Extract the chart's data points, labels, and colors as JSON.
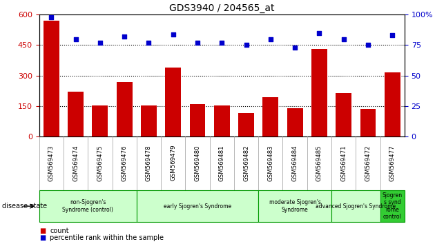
{
  "title": "GDS3940 / 204565_at",
  "samples": [
    "GSM569473",
    "GSM569474",
    "GSM569475",
    "GSM569476",
    "GSM569478",
    "GSM569479",
    "GSM569480",
    "GSM569481",
    "GSM569482",
    "GSM569483",
    "GSM569484",
    "GSM569485",
    "GSM569471",
    "GSM569472",
    "GSM569477"
  ],
  "counts": [
    570,
    220,
    155,
    270,
    155,
    340,
    160,
    155,
    115,
    195,
    140,
    430,
    215,
    135,
    315
  ],
  "percentiles": [
    98,
    80,
    77,
    82,
    77,
    84,
    77,
    77,
    75,
    80,
    73,
    85,
    80,
    75,
    83
  ],
  "bar_color": "#cc0000",
  "dot_color": "#0000cc",
  "ylim_left": [
    0,
    600
  ],
  "ylim_right": [
    0,
    100
  ],
  "yticks_left": [
    0,
    150,
    300,
    450,
    600
  ],
  "yticks_right": [
    0,
    25,
    50,
    75,
    100
  ],
  "grid_values": [
    150,
    300,
    450
  ],
  "groups": [
    {
      "label": "non-Sjogren's\nSyndrome (control)",
      "start": 0,
      "end": 3,
      "color": "#ccffcc"
    },
    {
      "label": "early Sjogren's Syndrome",
      "start": 4,
      "end": 8,
      "color": "#ccffcc"
    },
    {
      "label": "moderate Sjogren's\nSyndrome",
      "start": 9,
      "end": 11,
      "color": "#ccffcc"
    },
    {
      "label": "advanced Sjogren's Syndrome",
      "start": 12,
      "end": 13,
      "color": "#ccffcc"
    },
    {
      "label": "Sjogren\ns synd\nrome\ncontrol",
      "start": 14,
      "end": 14,
      "color": "#33cc33"
    }
  ],
  "disease_state_label": "disease state",
  "legend_count_label": "count",
  "legend_percentile_label": "percentile rank within the sample",
  "background_color": "#ffffff",
  "tick_area_color": "#cccccc",
  "group_border_color": "#009900"
}
